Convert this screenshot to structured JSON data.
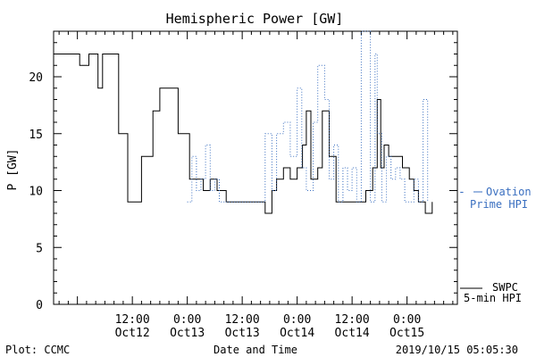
{
  "chart_data": {
    "type": "line",
    "title": "Hemispheric Power [GW]",
    "ylabel": "P [GW]",
    "xlabel": "Date and Time",
    "ylim": [
      0,
      24
    ],
    "xlim": [
      "2019-10-11 18:48",
      "2019-10-15 11:00"
    ],
    "grid": false,
    "yticks": [
      "0",
      "5",
      "10",
      "15",
      "20"
    ],
    "xticks": [
      {
        "x": "2019-10-12 12:00",
        "line1": "12:00",
        "line2": "Oct12"
      },
      {
        "x": "2019-10-13 00:00",
        "line1": "0:00",
        "line2": "Oct13"
      },
      {
        "x": "2019-10-13 12:00",
        "line1": "12:00",
        "line2": "Oct13"
      },
      {
        "x": "2019-10-14 00:00",
        "line1": "0:00",
        "line2": "Oct14"
      },
      {
        "x": "2019-10-14 12:00",
        "line1": "12:00",
        "line2": "Oct14"
      },
      {
        "x": "2019-10-15 00:00",
        "line1": "0:00",
        "line2": "Oct15"
      }
    ],
    "series": [
      {
        "name": "SWPC 5-min HPI",
        "color": "#000000",
        "style": "solid",
        "x": [
          "2019-10-11 18:48",
          "2019-10-11 21:30",
          "2019-10-12 00:30",
          "2019-10-12 02:30",
          "2019-10-12 04:30",
          "2019-10-12 05:30",
          "2019-10-12 07:00",
          "2019-10-12 09:00",
          "2019-10-12 11:00",
          "2019-10-12 14:00",
          "2019-10-12 16:30",
          "2019-10-12 18:00",
          "2019-10-12 20:00",
          "2019-10-12 22:00",
          "2019-10-13 00:30",
          "2019-10-13 02:30",
          "2019-10-13 03:30",
          "2019-10-13 05:00",
          "2019-10-13 06:30",
          "2019-10-13 08:30",
          "2019-10-13 12:00",
          "2019-10-13 16:00",
          "2019-10-13 17:00",
          "2019-10-13 18:30",
          "2019-10-13 19:30",
          "2019-10-13 21:00",
          "2019-10-13 22:30",
          "2019-10-14 00:00",
          "2019-10-14 01:10",
          "2019-10-14 02:00",
          "2019-10-14 03:00",
          "2019-10-14 04:30",
          "2019-10-14 05:30",
          "2019-10-14 07:00",
          "2019-10-14 08:30",
          "2019-10-14 10:00",
          "2019-10-14 12:00",
          "2019-10-14 15:00",
          "2019-10-14 16:30",
          "2019-10-14 17:30",
          "2019-10-14 18:15",
          "2019-10-14 19:00",
          "2019-10-14 20:00",
          "2019-10-14 21:00",
          "2019-10-14 22:00",
          "2019-10-14 23:00",
          "2019-10-15 00:30",
          "2019-10-15 01:30",
          "2019-10-15 02:30",
          "2019-10-15 04:00",
          "2019-10-15 05:30"
        ],
        "y": [
          22,
          22,
          21,
          22,
          19,
          22,
          22,
          15,
          9,
          13,
          17,
          19,
          19,
          15,
          11,
          11,
          10,
          11,
          10,
          9,
          9,
          9,
          8,
          10,
          11,
          12,
          11,
          12,
          14,
          17,
          11,
          12,
          17,
          13,
          9,
          9,
          9,
          10,
          12,
          18,
          12,
          14,
          13,
          13,
          13,
          12,
          11,
          10,
          9,
          8,
          9
        ]
      },
      {
        "name": "Ovation Prime HPI",
        "color": "#3a6fc0",
        "style": "dotted",
        "x": [
          "2019-10-13 00:00",
          "2019-10-13 01:00",
          "2019-10-13 02:00",
          "2019-10-13 03:00",
          "2019-10-13 04:00",
          "2019-10-13 05:00",
          "2019-10-13 06:00",
          "2019-10-13 07:00",
          "2019-10-13 09:30",
          "2019-10-13 12:00",
          "2019-10-13 14:00",
          "2019-10-13 16:00",
          "2019-10-13 17:00",
          "2019-10-13 18:30",
          "2019-10-13 19:30",
          "2019-10-13 21:00",
          "2019-10-13 22:30",
          "2019-10-14 00:00",
          "2019-10-14 01:00",
          "2019-10-14 02:00",
          "2019-10-14 03:30",
          "2019-10-14 04:30",
          "2019-10-14 06:00",
          "2019-10-14 07:00",
          "2019-10-14 08:00",
          "2019-10-14 09:00",
          "2019-10-14 10:00",
          "2019-10-14 11:00",
          "2019-10-14 12:00",
          "2019-10-14 13:00",
          "2019-10-14 14:00",
          "2019-10-14 15:00",
          "2019-10-14 16:00",
          "2019-10-14 17:00",
          "2019-10-14 17:30",
          "2019-10-14 18:30",
          "2019-10-14 19:30",
          "2019-10-14 20:30",
          "2019-10-14 21:30",
          "2019-10-14 22:30",
          "2019-10-14 23:30",
          "2019-10-15 00:30",
          "2019-10-15 01:00",
          "2019-10-15 01:30",
          "2019-10-15 02:30",
          "2019-10-15 03:30",
          "2019-10-15 04:30"
        ],
        "y": [
          9,
          13,
          10,
          11,
          14,
          10,
          11,
          9,
          9,
          9,
          9,
          9,
          15,
          10,
          15,
          16,
          13,
          19,
          12,
          10,
          16,
          21,
          18,
          11,
          14,
          9,
          12,
          10,
          12,
          9,
          24,
          24,
          9,
          22,
          15,
          9,
          13,
          11,
          12,
          11,
          9,
          9,
          9,
          11,
          9,
          18,
          9
        ]
      }
    ],
    "legend": {
      "placement": "right",
      "ovation_line1": "Ovation",
      "ovation_line2": "Prime HPI",
      "swpc_line1": "SWPC",
      "swpc_line2": "5-min HPI"
    },
    "footer": {
      "left": "Plot: CCMC",
      "center": "Date and Time",
      "right": "2019/10/15 05:05:30"
    }
  }
}
